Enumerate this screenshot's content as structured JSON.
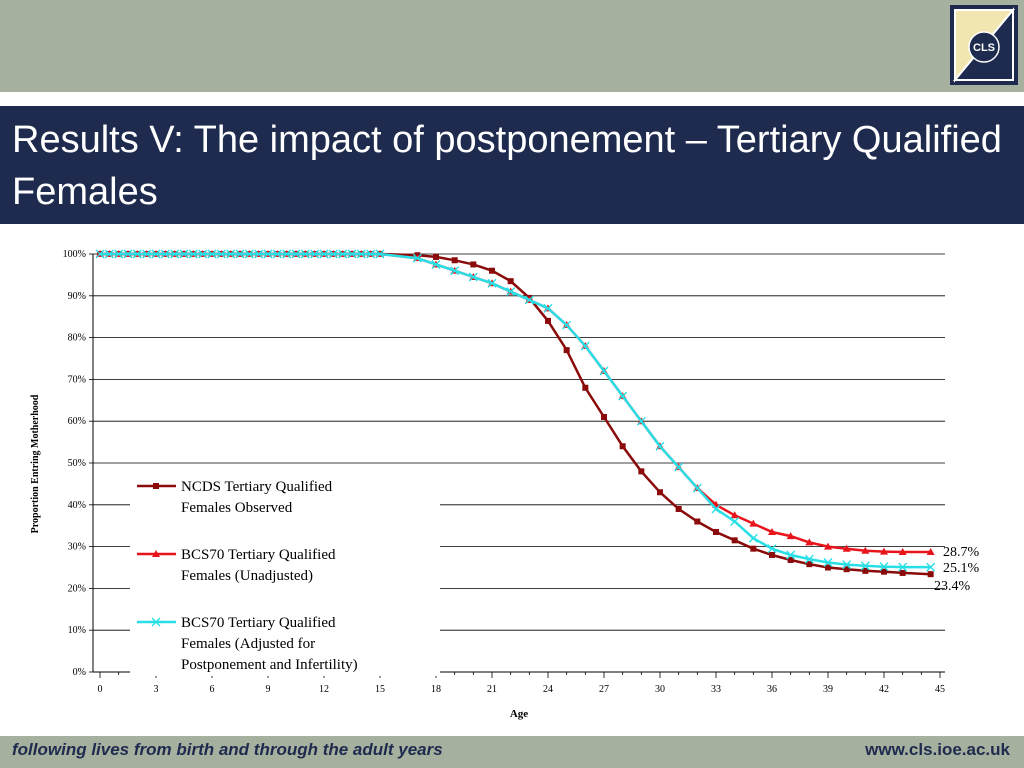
{
  "header": {
    "logo_text": "CLS"
  },
  "slide": {
    "title": "Results V: The impact of postponement – Tertiary Qualified Females"
  },
  "footer": {
    "tagline": "following lives from birth and through the adult years",
    "url": "www.cls.ioe.ac.uk"
  },
  "colors": {
    "band": "#a6b09e",
    "navy": "#1e2a4e",
    "ncds": "#8b0a0a",
    "bcs_unadj": "#e8141c",
    "bcs_adj": "#29dfe6"
  },
  "chart_data": {
    "type": "line",
    "xlabel": "Age",
    "ylabel": "Proportion Entring Motherhood",
    "xlim": [
      0,
      45
    ],
    "ylim": [
      0,
      1
    ],
    "xticks": [
      "0",
      "3",
      "6",
      "9",
      "12",
      "15",
      "18",
      "21",
      "24",
      "27",
      "30",
      "33",
      "36",
      "39",
      "42",
      "45"
    ],
    "yticks": [
      "0%",
      "10%",
      "20%",
      "30%",
      "40%",
      "50%",
      "60%",
      "70%",
      "80%",
      "90%",
      "100%"
    ],
    "grid": "horizontal",
    "legend_position": "lower-left",
    "annotations": [
      "28.7%",
      "25.1%",
      "23.4%"
    ],
    "series": [
      {
        "name": "NCDS Tertiary Qualified Females Observed",
        "marker": "square",
        "x": [
          15,
          17,
          18,
          19,
          20,
          21,
          22,
          23,
          24,
          25,
          26,
          27,
          28,
          29,
          30,
          31,
          32,
          33,
          34,
          35,
          36,
          37,
          38,
          39,
          40,
          41,
          42,
          43,
          44.5
        ],
        "values": [
          1.0,
          0.997,
          0.993,
          0.985,
          0.975,
          0.96,
          0.935,
          0.895,
          0.84,
          0.77,
          0.68,
          0.61,
          0.54,
          0.48,
          0.43,
          0.39,
          0.36,
          0.335,
          0.315,
          0.295,
          0.28,
          0.268,
          0.258,
          0.25,
          0.246,
          0.242,
          0.24,
          0.237,
          0.234
        ]
      },
      {
        "name": "BCS70 Tertiary Qualified Females (Unadjusted)",
        "marker": "triangle",
        "x": [
          15,
          17,
          18,
          19,
          20,
          21,
          22,
          23,
          24,
          25,
          26,
          27,
          28,
          29,
          30,
          31,
          32,
          33,
          34,
          35,
          36,
          37,
          38,
          39,
          40,
          41,
          42,
          43,
          44.5
        ],
        "values": [
          1.0,
          0.99,
          0.975,
          0.96,
          0.945,
          0.93,
          0.91,
          0.89,
          0.87,
          0.83,
          0.78,
          0.72,
          0.66,
          0.6,
          0.54,
          0.49,
          0.44,
          0.4,
          0.375,
          0.355,
          0.335,
          0.325,
          0.31,
          0.3,
          0.295,
          0.29,
          0.288,
          0.287,
          0.287
        ]
      },
      {
        "name": "BCS70 Tertiary Qualified Females (Adjusted for Postponement and Infertility)",
        "marker": "x",
        "x": [
          15,
          17,
          18,
          19,
          20,
          21,
          22,
          23,
          24,
          25,
          26,
          27,
          28,
          29,
          30,
          31,
          32,
          33,
          34,
          35,
          36,
          37,
          38,
          39,
          40,
          41,
          42,
          43,
          44.5
        ],
        "values": [
          1.0,
          0.99,
          0.975,
          0.96,
          0.945,
          0.93,
          0.91,
          0.89,
          0.87,
          0.83,
          0.78,
          0.72,
          0.66,
          0.6,
          0.54,
          0.49,
          0.44,
          0.39,
          0.36,
          0.32,
          0.295,
          0.28,
          0.27,
          0.262,
          0.257,
          0.254,
          0.252,
          0.251,
          0.251
        ]
      }
    ]
  }
}
